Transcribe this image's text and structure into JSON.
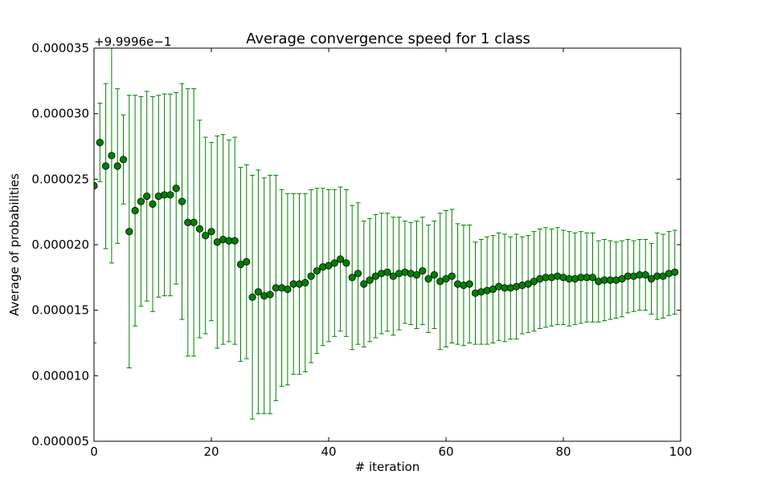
{
  "chart_data": {
    "type": "scatter",
    "title": "Average convergence speed for 1 class",
    "xlabel": "# iteration",
    "ylabel": "Average of probabilities",
    "offset_text": "+9.9996e−1",
    "xlim": [
      0,
      100
    ],
    "ylim": [
      5e-06,
      3.5e-05
    ],
    "x_ticks": [
      0,
      20,
      40,
      60,
      80,
      100
    ],
    "x_tick_labels": [
      "0",
      "20",
      "40",
      "60",
      "80",
      "100"
    ],
    "y_ticks": [
      5e-06,
      1e-05,
      1.5e-05,
      2e-05,
      2.5e-05,
      3e-05,
      3.5e-05
    ],
    "y_tick_labels": [
      "0.000005",
      "0.000010",
      "0.000015",
      "0.000020",
      "0.000025",
      "0.000030",
      "0.000035"
    ],
    "grid": false,
    "marker_color": "#008000",
    "errorbar_color": "#008000",
    "x": [
      0,
      1,
      2,
      3,
      4,
      5,
      6,
      7,
      8,
      9,
      10,
      11,
      12,
      13,
      14,
      15,
      16,
      17,
      18,
      19,
      20,
      21,
      22,
      23,
      24,
      25,
      26,
      27,
      28,
      29,
      30,
      31,
      32,
      33,
      34,
      35,
      36,
      37,
      38,
      39,
      40,
      41,
      42,
      43,
      44,
      45,
      46,
      47,
      48,
      49,
      50,
      51,
      52,
      53,
      54,
      55,
      56,
      57,
      58,
      59,
      60,
      61,
      62,
      63,
      64,
      65,
      66,
      67,
      68,
      69,
      70,
      71,
      72,
      73,
      74,
      75,
      76,
      77,
      78,
      79,
      80,
      81,
      82,
      83,
      84,
      85,
      86,
      87,
      88,
      89,
      90,
      91,
      92,
      93,
      94,
      95,
      96,
      97,
      98,
      99
    ],
    "y": [
      2.45e-05,
      2.78e-05,
      2.6e-05,
      2.68e-05,
      2.6e-05,
      2.65e-05,
      2.1e-05,
      2.26e-05,
      2.33e-05,
      2.37e-05,
      2.31e-05,
      2.37e-05,
      2.38e-05,
      2.38e-05,
      2.43e-05,
      2.33e-05,
      2.17e-05,
      2.17e-05,
      2.12e-05,
      2.07e-05,
      2.1e-05,
      2.02e-05,
      2.04e-05,
      2.03e-05,
      2.03e-05,
      1.85e-05,
      1.87e-05,
      1.6e-05,
      1.64e-05,
      1.61e-05,
      1.62e-05,
      1.67e-05,
      1.67e-05,
      1.66e-05,
      1.7e-05,
      1.7e-05,
      1.71e-05,
      1.76e-05,
      1.8e-05,
      1.83e-05,
      1.84e-05,
      1.86e-05,
      1.89e-05,
      1.86e-05,
      1.75e-05,
      1.78e-05,
      1.7e-05,
      1.73e-05,
      1.76e-05,
      1.78e-05,
      1.79e-05,
      1.76e-05,
      1.78e-05,
      1.79e-05,
      1.78e-05,
      1.77e-05,
      1.8e-05,
      1.74e-05,
      1.77e-05,
      1.72e-05,
      1.74e-05,
      1.76e-05,
      1.7e-05,
      1.69e-05,
      1.7e-05,
      1.63e-05,
      1.64e-05,
      1.65e-05,
      1.66e-05,
      1.68e-05,
      1.67e-05,
      1.67e-05,
      1.68e-05,
      1.69e-05,
      1.7e-05,
      1.72e-05,
      1.74e-05,
      1.75e-05,
      1.75e-05,
      1.76e-05,
      1.75e-05,
      1.74e-05,
      1.74e-05,
      1.75e-05,
      1.75e-05,
      1.75e-05,
      1.72e-05,
      1.73e-05,
      1.73e-05,
      1.73e-05,
      1.74e-05,
      1.76e-05,
      1.76e-05,
      1.77e-05,
      1.77e-05,
      1.74e-05,
      1.76e-05,
      1.76e-05,
      1.78e-05,
      1.79e-05
    ],
    "yerr": [
      1.2e-05,
      3e-06,
      6.3e-06,
      8.2e-06,
      5.9e-06,
      3.4e-06,
      1.04e-05,
      8.8e-06,
      8e-06,
      8e-06,
      8.2e-06,
      7.7e-06,
      7.7e-06,
      7.7e-06,
      7.3e-06,
      9e-06,
      1.02e-05,
      1.02e-05,
      8.3e-06,
      7.5e-06,
      6.8e-06,
      8.1e-06,
      8e-06,
      7.7e-06,
      7.9e-06,
      7.4e-06,
      7.4e-06,
      9.3e-06,
      9.3e-06,
      9e-06,
      9.1e-06,
      8.6e-06,
      7.5e-06,
      7.3e-06,
      6.9e-06,
      6.9e-06,
      6.8e-06,
      6.6e-06,
      6.3e-06,
      6e-06,
      5.8e-06,
      5.6e-06,
      5.5e-06,
      5.6e-06,
      5.5e-06,
      5.4e-06,
      4.8e-06,
      4.7e-06,
      4.7e-06,
      4.6e-06,
      4.5e-06,
      4.5e-06,
      4.3e-06,
      3.9e-06,
      3.9e-06,
      4.1e-06,
      4.1e-06,
      4.1e-06,
      4.1e-06,
      5.2e-06,
      5.2e-06,
      5.1e-06,
      4.6e-06,
      4.6e-06,
      4.5e-06,
      3.9e-06,
      4e-06,
      4.1e-06,
      4.1e-06,
      4.1e-06,
      4.1e-06,
      3.9e-06,
      4e-06,
      3.7e-06,
      3.7e-06,
      3.8e-06,
      3.8e-06,
      3.8e-06,
      3.7e-06,
      3.7e-06,
      3.6e-06,
      3.6e-06,
      3.5e-06,
      3.5e-06,
      3.4e-06,
      3.4e-06,
      3.1e-06,
      3.1e-06,
      3e-06,
      2.9e-06,
      2.9e-06,
      2.8e-06,
      2.7e-06,
      2.7e-06,
      2.7e-06,
      2.7e-06,
      3.3e-06,
      3.2e-06,
      3.2e-06,
      3.2e-06
    ]
  }
}
